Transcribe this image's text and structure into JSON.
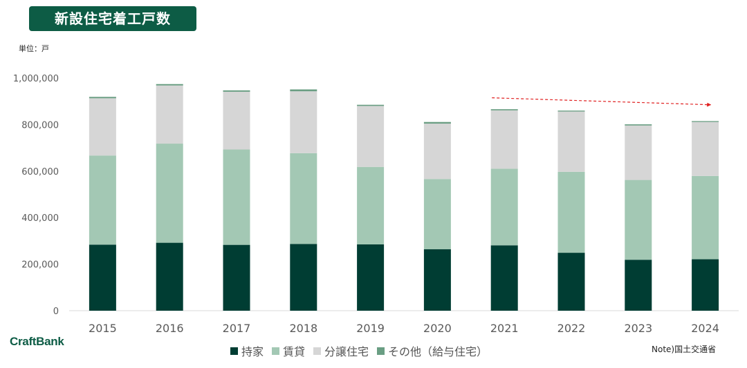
{
  "header": {
    "title": "新設住宅着工戸数",
    "unit": "単位：戸"
  },
  "footer": {
    "brand": "CraftBank",
    "note": "Note)国土交通省"
  },
  "colors": {
    "title_bg": "#0d5c45",
    "series": [
      "#003d33",
      "#a3c8b4",
      "#d6d6d6",
      "#6a9e83"
    ],
    "trend_arrow": "#e02020"
  },
  "chart_data": {
    "type": "bar",
    "stacked": true,
    "title": "新設住宅着工戸数",
    "ylabel": "単位：戸",
    "categories": [
      "2015",
      "2016",
      "2017",
      "2018",
      "2019",
      "2020",
      "2021",
      "2022",
      "2023",
      "2024"
    ],
    "y_ticks": [
      "0",
      "200,000",
      "400,000",
      "600,000",
      "800,000",
      "1,000,000"
    ],
    "ylim": [
      0,
      1000000
    ],
    "grid": false,
    "legend_position": "bottom",
    "series": [
      {
        "name": "持家",
        "values": [
          284000,
          292000,
          283000,
          287000,
          285000,
          264000,
          281000,
          249000,
          219000,
          221000
        ]
      },
      {
        "name": "賃貸",
        "values": [
          383000,
          426000,
          410000,
          390000,
          333000,
          302000,
          329000,
          348000,
          343000,
          358000
        ]
      },
      {
        "name": "分譲住宅",
        "values": [
          246000,
          250000,
          248000,
          266000,
          262000,
          238000,
          251000,
          259000,
          234000,
          232000
        ]
      },
      {
        "name": "その他（給与住宅）",
        "values": [
          6000,
          6000,
          6000,
          8000,
          5000,
          7000,
          5000,
          4000,
          5000,
          4000
        ]
      }
    ],
    "annotations": [
      {
        "type": "trend-arrow",
        "style": "dashed",
        "from_category": "2021",
        "to_category": "2024",
        "from_value": 915000,
        "to_value": 885000
      }
    ]
  }
}
